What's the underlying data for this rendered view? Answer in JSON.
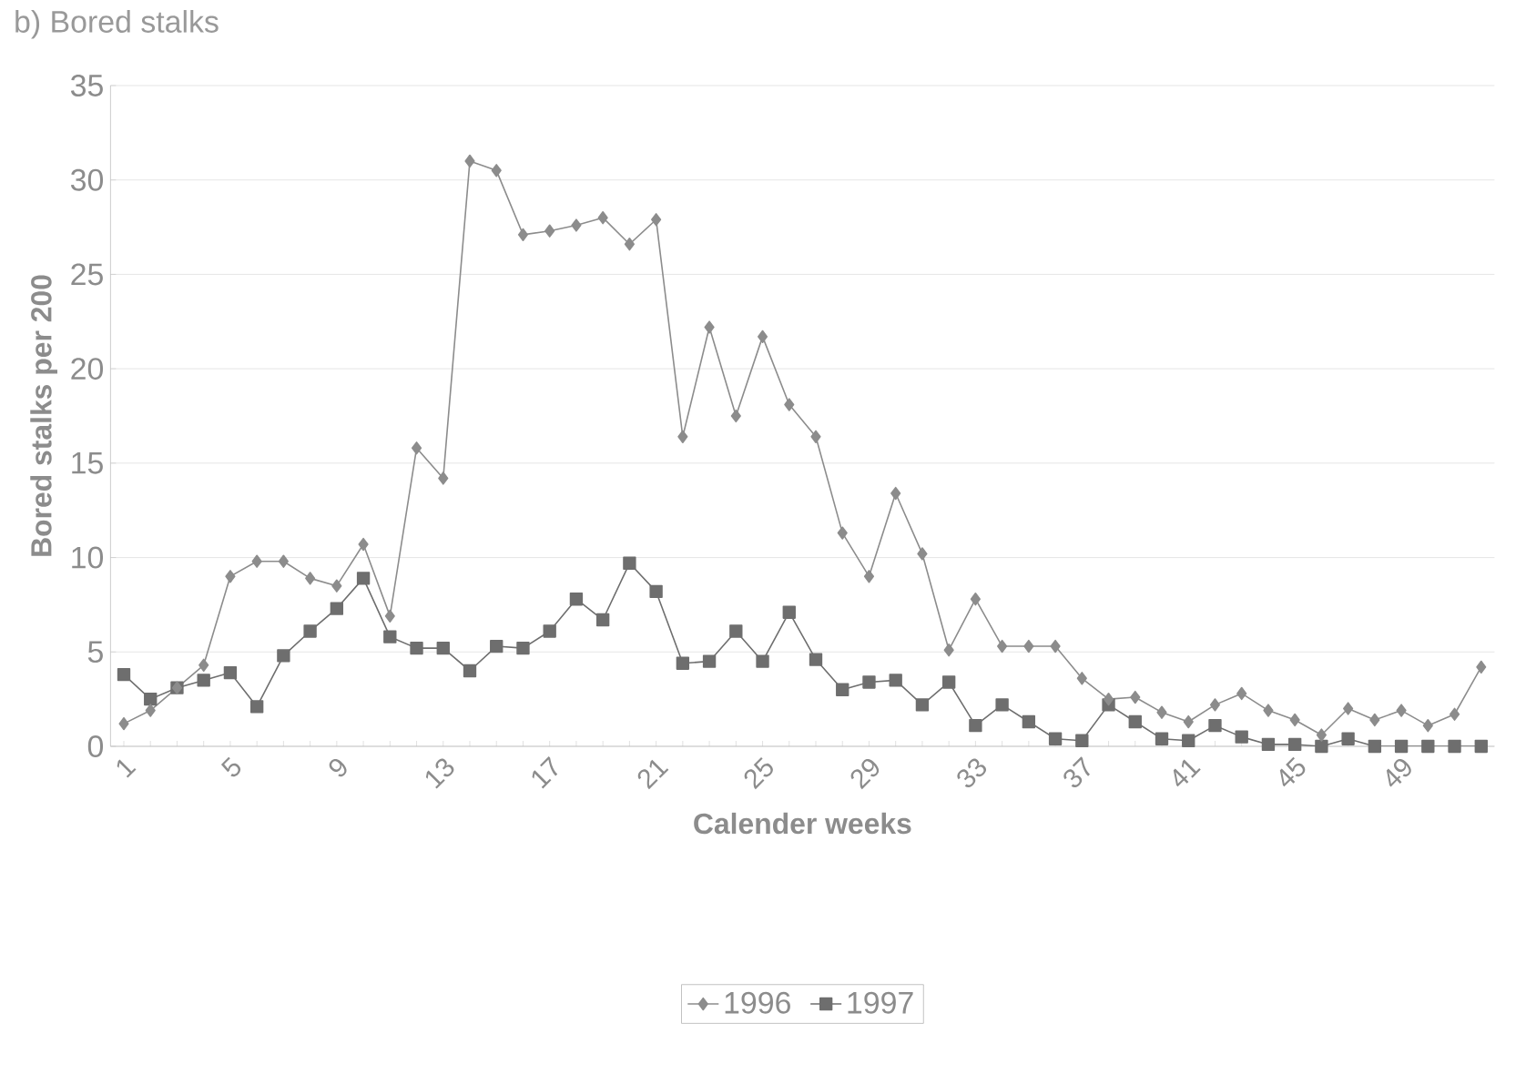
{
  "chart_data": {
    "type": "line",
    "title": "b) Bored stalks",
    "xlabel": "Calender weeks",
    "ylabel": "Bored stalks per 200",
    "categories": [
      "1",
      null,
      null,
      null,
      "5",
      null,
      null,
      null,
      "9",
      null,
      null,
      null,
      "13",
      null,
      null,
      null,
      "17",
      null,
      null,
      null,
      "21",
      null,
      null,
      null,
      "25",
      null,
      null,
      null,
      "29",
      null,
      null,
      null,
      "33",
      null,
      null,
      null,
      "37",
      null,
      null,
      null,
      "41",
      null,
      null,
      null,
      "45",
      null,
      null,
      null,
      "49",
      null,
      null,
      null
    ],
    "series": [
      {
        "name": "1996",
        "color": "#8c8c8c",
        "marker": "diamond",
        "values": [
          1.2,
          1.9,
          3.1,
          4.3,
          9.0,
          9.8,
          9.8,
          8.9,
          8.5,
          10.7,
          6.9,
          15.8,
          14.2,
          31.0,
          30.5,
          27.1,
          27.3,
          27.6,
          28.0,
          26.6,
          27.9,
          16.4,
          22.2,
          17.5,
          21.7,
          18.1,
          16.4,
          11.3,
          9.0,
          13.4,
          10.2,
          5.1,
          7.8,
          5.3,
          5.3,
          5.3,
          3.6,
          2.5,
          2.6,
          1.8,
          1.3,
          2.2,
          2.8,
          1.9,
          1.4,
          0.6,
          2.0,
          1.4,
          1.9,
          1.1,
          1.7,
          4.2
        ]
      },
      {
        "name": "1997",
        "color": "#6e6e6e",
        "marker": "square",
        "values": [
          3.8,
          2.5,
          3.1,
          3.5,
          3.9,
          2.1,
          4.8,
          6.1,
          7.3,
          8.9,
          5.8,
          5.2,
          5.2,
          4.0,
          5.3,
          5.2,
          6.1,
          7.8,
          6.7,
          9.7,
          8.2,
          4.4,
          4.5,
          6.1,
          4.5,
          7.1,
          4.6,
          3.0,
          3.4,
          3.5,
          2.2,
          3.4,
          1.1,
          2.2,
          1.3,
          0.4,
          0.3,
          2.2,
          1.3,
          0.4,
          0.3,
          1.1,
          0.5,
          0.1,
          0.1,
          0.0,
          0.4,
          0.0,
          0.0,
          0.0,
          0.0,
          0.0
        ]
      }
    ],
    "ylim": [
      0,
      35
    ],
    "yticks": [
      0,
      5,
      10,
      15,
      20,
      25,
      30,
      35
    ],
    "grid": "y",
    "legend": "bottom"
  }
}
